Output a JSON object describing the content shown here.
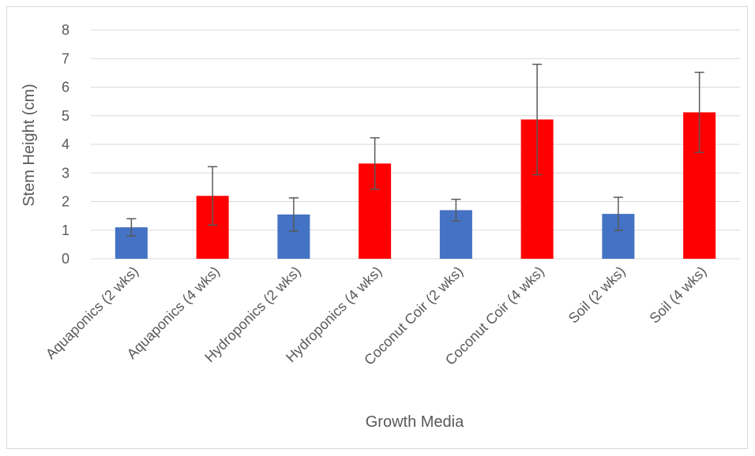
{
  "chart_data": {
    "type": "bar",
    "title": "",
    "xlabel": "Growth Media",
    "ylabel": "Stem Height (cm)",
    "ylim": [
      0,
      8
    ],
    "yticks": [
      0,
      1,
      2,
      3,
      4,
      5,
      6,
      7,
      8
    ],
    "grid": true,
    "legend": "none",
    "categories": [
      "Aquaponics (2 wks)",
      "Aquaponics (4 wks)",
      "Hydroponics (2 wks)",
      "Hydroponics (4 wks)",
      "Coconut Coir (2 wks)",
      "Coconut Coir (4 wks)",
      "Soil (2 wks)",
      "Soil (4 wks)"
    ],
    "values": [
      1.1,
      2.2,
      1.55,
      3.33,
      1.7,
      4.87,
      1.57,
      5.12
    ],
    "error": [
      0.3,
      1.02,
      0.58,
      0.9,
      0.38,
      1.93,
      0.58,
      1.4
    ],
    "bar_colors": [
      "#4472c4",
      "#ff0000",
      "#4472c4",
      "#ff0000",
      "#4472c4",
      "#ff0000",
      "#4472c4",
      "#ff0000"
    ]
  }
}
